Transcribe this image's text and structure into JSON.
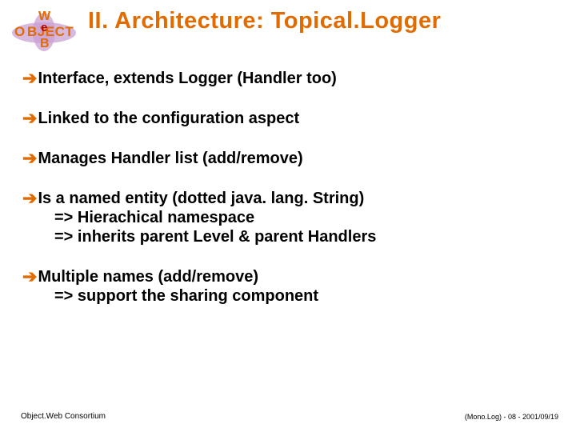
{
  "colors": {
    "accent": "#e06b00",
    "text": "#000000",
    "background": "#ffffff",
    "logo_lilac": "#c9a0d4"
  },
  "title": "II. Architecture: Topical.Logger",
  "bullets": [
    {
      "text": "Interface, extends Logger (Handler too)",
      "subs": []
    },
    {
      "text": "Linked to the configuration aspect",
      "subs": []
    },
    {
      "text": "Manages Handler list (add/remove)",
      "subs": []
    },
    {
      "text": "Is a named entity (dotted java. lang. String)",
      "subs": [
        "=> Hierachical namespace",
        "=> inherits parent Level & parent Handlers"
      ]
    },
    {
      "text": "Multiple names (add/remove)",
      "subs": [
        "=> support the sharing component"
      ]
    }
  ],
  "footer": {
    "left": "Object.Web Consortium",
    "right": "(Mono.Log) - 08 - 2001/09/19"
  },
  "logo": {
    "line_top": "W",
    "line_mid_left": "O",
    "line_mid_right": "BJECT",
    "center_e": "e",
    "line_bot": "B"
  }
}
